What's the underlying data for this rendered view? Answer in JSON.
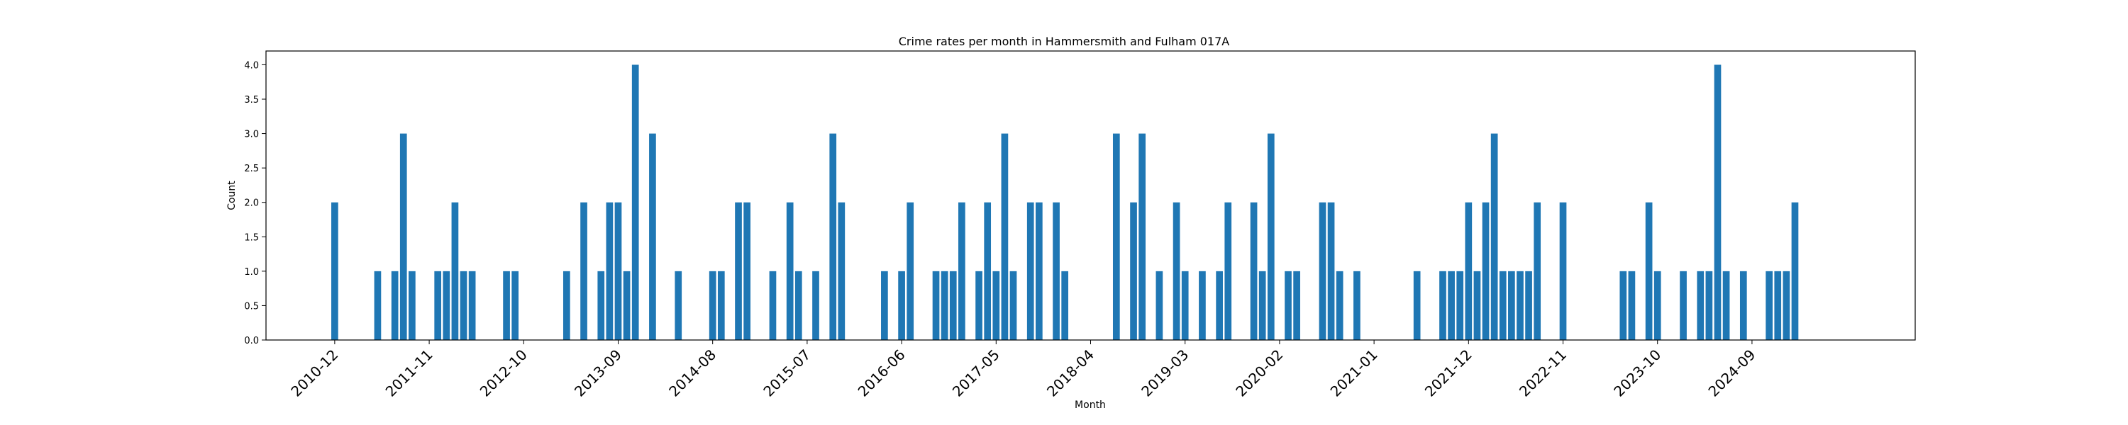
{
  "chart_data": {
    "type": "bar",
    "title": "Crime rates per month in Hammersmith and Fulham 017A",
    "xlabel": "Month",
    "ylabel": "Count",
    "ylim": [
      0,
      4.2
    ],
    "yticks": [
      0.0,
      0.5,
      1.0,
      1.5,
      2.0,
      2.5,
      3.0,
      3.5,
      4.0
    ],
    "ytick_labels": [
      "0.0",
      "0.5",
      "1.0",
      "1.5",
      "2.0",
      "2.5",
      "3.0",
      "3.5",
      "4.0"
    ],
    "xlim": [
      "2010-04",
      "2026-04"
    ],
    "xticks": [
      "2010-12",
      "2011-11",
      "2012-10",
      "2013-09",
      "2014-08",
      "2015-07",
      "2016-06",
      "2017-05",
      "2018-04",
      "2019-03",
      "2020-02",
      "2021-01",
      "2021-12",
      "2022-11",
      "2023-10",
      "2024-09"
    ],
    "bar_color": "#1f77b4",
    "grid": false,
    "legend": "none",
    "points": [
      [
        "2010-12",
        2
      ],
      [
        "2011-05",
        1
      ],
      [
        "2011-07",
        1
      ],
      [
        "2011-08",
        3
      ],
      [
        "2011-09",
        1
      ],
      [
        "2011-12",
        1
      ],
      [
        "2012-01",
        1
      ],
      [
        "2012-02",
        2
      ],
      [
        "2012-03",
        1
      ],
      [
        "2012-04",
        1
      ],
      [
        "2012-08",
        1
      ],
      [
        "2012-09",
        1
      ],
      [
        "2013-03",
        1
      ],
      [
        "2013-05",
        2
      ],
      [
        "2013-07",
        1
      ],
      [
        "2013-08",
        2
      ],
      [
        "2013-09",
        2
      ],
      [
        "2013-10",
        1
      ],
      [
        "2013-11",
        4
      ],
      [
        "2014-01",
        3
      ],
      [
        "2014-04",
        1
      ],
      [
        "2014-08",
        1
      ],
      [
        "2014-09",
        1
      ],
      [
        "2014-11",
        2
      ],
      [
        "2014-12",
        2
      ],
      [
        "2015-03",
        1
      ],
      [
        "2015-05",
        2
      ],
      [
        "2015-06",
        1
      ],
      [
        "2015-08",
        1
      ],
      [
        "2015-10",
        3
      ],
      [
        "2015-11",
        2
      ],
      [
        "2016-04",
        1
      ],
      [
        "2016-06",
        1
      ],
      [
        "2016-07",
        2
      ],
      [
        "2016-10",
        1
      ],
      [
        "2016-11",
        1
      ],
      [
        "2016-12",
        1
      ],
      [
        "2017-01",
        2
      ],
      [
        "2017-03",
        1
      ],
      [
        "2017-04",
        2
      ],
      [
        "2017-05",
        1
      ],
      [
        "2017-06",
        3
      ],
      [
        "2017-07",
        1
      ],
      [
        "2017-09",
        2
      ],
      [
        "2017-10",
        2
      ],
      [
        "2017-12",
        2
      ],
      [
        "2018-01",
        1
      ],
      [
        "2018-07",
        3
      ],
      [
        "2018-09",
        2
      ],
      [
        "2018-10",
        3
      ],
      [
        "2018-12",
        1
      ],
      [
        "2019-02",
        2
      ],
      [
        "2019-03",
        1
      ],
      [
        "2019-05",
        1
      ],
      [
        "2019-07",
        1
      ],
      [
        "2019-08",
        2
      ],
      [
        "2019-11",
        2
      ],
      [
        "2019-12",
        1
      ],
      [
        "2020-01",
        3
      ],
      [
        "2020-03",
        1
      ],
      [
        "2020-04",
        1
      ],
      [
        "2020-07",
        2
      ],
      [
        "2020-08",
        2
      ],
      [
        "2020-09",
        1
      ],
      [
        "2020-11",
        1
      ],
      [
        "2021-06",
        1
      ],
      [
        "2021-09",
        1
      ],
      [
        "2021-10",
        1
      ],
      [
        "2021-11",
        1
      ],
      [
        "2021-12",
        2
      ],
      [
        "2022-01",
        1
      ],
      [
        "2022-02",
        2
      ],
      [
        "2022-03",
        3
      ],
      [
        "2022-04",
        1
      ],
      [
        "2022-05",
        1
      ],
      [
        "2022-06",
        1
      ],
      [
        "2022-07",
        1
      ],
      [
        "2022-08",
        2
      ],
      [
        "2022-11",
        2
      ],
      [
        "2023-06",
        1
      ],
      [
        "2023-07",
        1
      ],
      [
        "2023-09",
        2
      ],
      [
        "2023-10",
        1
      ],
      [
        "2024-01",
        1
      ],
      [
        "2024-03",
        1
      ],
      [
        "2024-04",
        1
      ],
      [
        "2024-05",
        4
      ],
      [
        "2024-06",
        1
      ],
      [
        "2024-08",
        1
      ],
      [
        "2024-11",
        1
      ],
      [
        "2024-12",
        1
      ],
      [
        "2025-01",
        1
      ],
      [
        "2025-02",
        2
      ]
    ]
  }
}
